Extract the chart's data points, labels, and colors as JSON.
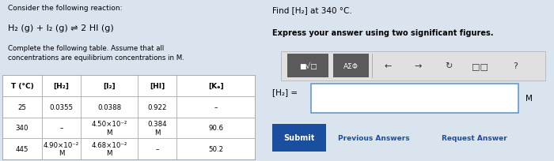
{
  "title_left": "Consider the following reaction:",
  "reaction": "H₂ (g) + I₂ (g) ⇌ 2 HI (g)",
  "subtitle": "Complete the following table. Assume that all\nconcentrations are equilibrium concentrations in M.",
  "col_headers": [
    "T (°C)",
    "[H₂]",
    "[I₂]",
    "[HI]",
    "[Kₑ]"
  ],
  "rows": [
    [
      "25",
      "0.0355",
      "0.0388",
      "0.922",
      "–"
    ],
    [
      "340",
      "–",
      "4.50×10⁻²\nM",
      "0.384\nM",
      "90.6"
    ],
    [
      "445",
      "4.90×10⁻²\nM",
      "4.68×10⁻²\nM",
      "–",
      "50.2"
    ]
  ],
  "find_title": "Find [H₂] at 340 °C.",
  "find_subtitle": "Express your answer using two significant figures.",
  "input_label": "[H₂] =",
  "input_unit": "M",
  "submit_text": "Submit",
  "prev_text": "Previous Answers",
  "req_text": "Request Answer",
  "bg_color": "#d9e4ef",
  "table_bg": "#ffffff",
  "border_color": "#aaaaaa",
  "submit_bg": "#1a4fa0",
  "toolbar_bg": "#5a5a5a",
  "input_border": "#6699cc",
  "toolbar_box_bg": "#e0e0e0",
  "right_panel_bg": "#d5dfe8"
}
